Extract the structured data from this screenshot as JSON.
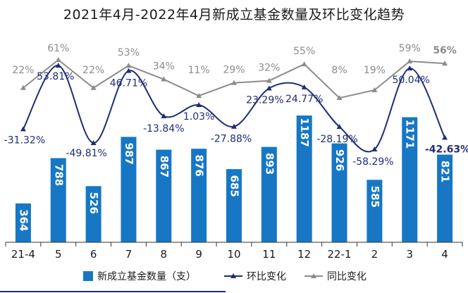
{
  "chart_data": {
    "type": "bar",
    "title": "2021年4月-2022年4月新成立基金数量及环比变化趋势",
    "categories": [
      "21-4",
      "5",
      "6",
      "7",
      "8",
      "9",
      "10",
      "11",
      "12",
      "22-1",
      "2",
      "3",
      "4"
    ],
    "series": [
      {
        "name": "新成立基金数量（支）",
        "type": "bar",
        "color": "#1777c4",
        "values": [
          364,
          788,
          526,
          987,
          867,
          876,
          685,
          893,
          1187,
          926,
          585,
          1171,
          821
        ]
      },
      {
        "name": "环比变化",
        "type": "line",
        "color": "#1f2d78",
        "values": [
          -31.32,
          53.81,
          -49.81,
          46.71,
          -13.84,
          1.03,
          -27.88,
          23.29,
          24.77,
          -28.19,
          -58.29,
          50.04,
          -42.63
        ],
        "labels": [
          "-31.32%",
          "53.81%",
          "-49.81%",
          "46.71%",
          "-13.84%",
          "1.03%",
          "-27.88%",
          "23.29%",
          "24.77%",
          "-28.19%",
          "-58.29%",
          "50.04%",
          "-42.63%"
        ]
      },
      {
        "name": "同比变化",
        "type": "line",
        "color": "#8c8c8c",
        "values": [
          22,
          61,
          22,
          53,
          34,
          11,
          29,
          32,
          55,
          8,
          19,
          59,
          56
        ],
        "labels": [
          "22%",
          "61%",
          "22%",
          "53%",
          "34%",
          "11%",
          "29%",
          "32%",
          "55%",
          "8%",
          "19%",
          "59%",
          "56%"
        ]
      }
    ],
    "legend_position": "bottom",
    "grid": false
  }
}
